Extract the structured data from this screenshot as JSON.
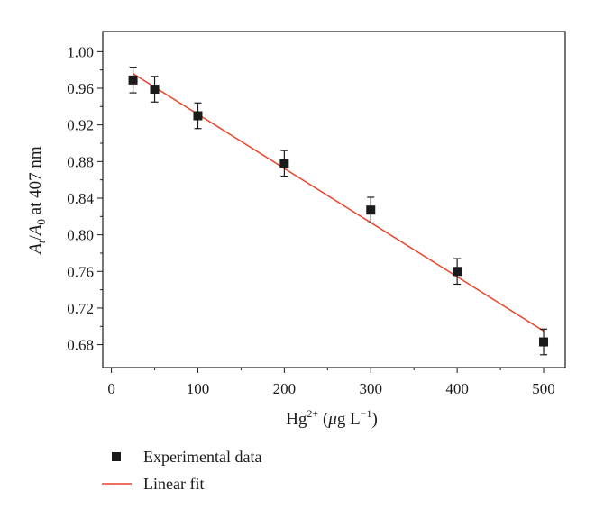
{
  "chart_data": {
    "type": "scatter",
    "title": "",
    "xlabel": {
      "base": "Hg",
      "sup": "2+",
      "open": " (",
      "mu": "μ",
      "unit": "g L",
      "unit_sup": "−1",
      "close": ")"
    },
    "ylabel": {
      "A1": "A",
      "sub1": "t",
      "slash": "/",
      "A2": "A",
      "sub2": "0",
      "rest": " at 407 nm"
    },
    "xlim": [
      -10,
      525
    ],
    "ylim": [
      0.655,
      1.022
    ],
    "xticks": [
      0,
      100,
      200,
      300,
      400,
      500
    ],
    "xtick_labels": [
      "0",
      "100",
      "200",
      "300",
      "400",
      "500"
    ],
    "yticks": [
      0.68,
      0.72,
      0.76,
      0.8,
      0.84,
      0.88,
      0.92,
      0.96,
      1.0
    ],
    "ytick_labels": [
      "0.68",
      "0.72",
      "0.76",
      "0.80",
      "0.84",
      "0.88",
      "0.92",
      "0.96",
      "1.00"
    ],
    "grid": false,
    "legend_position": "bottom-left, below plot",
    "series": [
      {
        "name": "Experimental data",
        "kind": "points",
        "color": "#1a1a1a",
        "x": [
          25,
          50,
          100,
          200,
          300,
          400,
          500
        ],
        "y": [
          0.969,
          0.959,
          0.93,
          0.878,
          0.827,
          0.76,
          0.683
        ],
        "error": [
          0.014,
          0.014,
          0.014,
          0.014,
          0.014,
          0.014,
          0.014
        ]
      },
      {
        "name": "Linear fit",
        "kind": "line",
        "color": "#e8432a",
        "x": [
          25,
          500
        ],
        "y": [
          0.976,
          0.695
        ]
      }
    ]
  }
}
